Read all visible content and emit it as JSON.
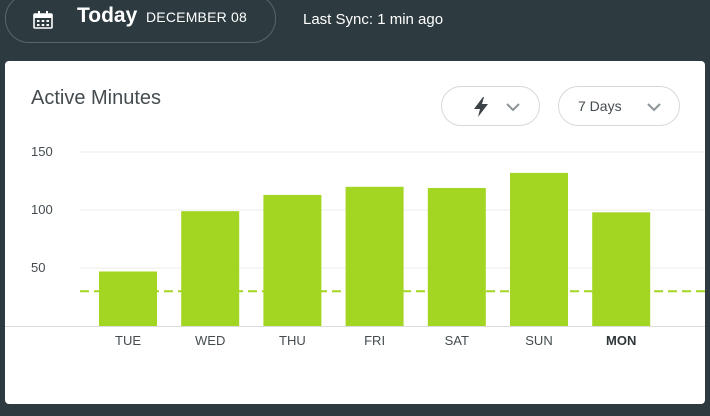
{
  "header": {
    "today_label": "Today",
    "date_label": "DECEMBER 08",
    "sync_label": "Last Sync: 1 min ago",
    "calendar_icon": "calendar-icon"
  },
  "card": {
    "title": "Active Minutes",
    "metric_button_icon": "lightning-bolt-icon",
    "range_label": "7 Days"
  },
  "colors": {
    "bar": "#a3d523",
    "goal_line": "#a3d523",
    "background": "#2d3b40",
    "card": "#ffffff"
  },
  "chart_data": {
    "type": "bar",
    "categories": [
      "TUE",
      "WED",
      "THU",
      "FRI",
      "SAT",
      "SUN",
      "MON"
    ],
    "values": [
      47,
      99,
      113,
      120,
      119,
      132,
      98
    ],
    "highlighted_category": "MON",
    "yticks": [
      50,
      100,
      150
    ],
    "ylim": [
      0,
      150
    ],
    "goal": 30,
    "grid": true
  }
}
